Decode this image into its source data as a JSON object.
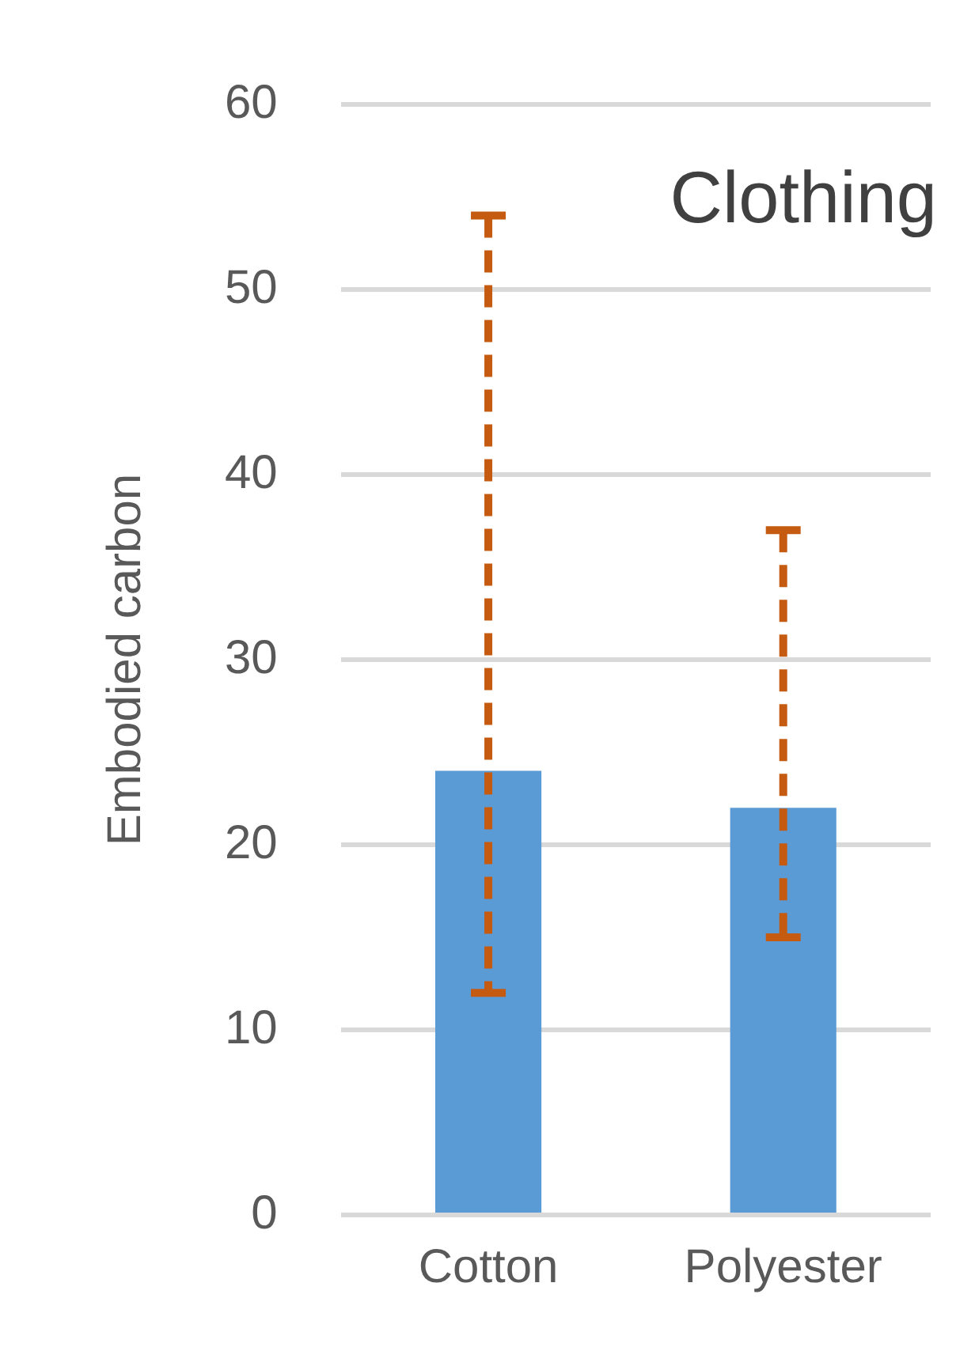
{
  "chart_data": {
    "type": "bar",
    "title": "Clothing",
    "ylabel": "Embodied carbon",
    "categories": [
      "Cotton",
      "Polyester"
    ],
    "values": [
      24,
      22
    ],
    "color": "#5b9bd5",
    "errors": [
      [
        12,
        54
      ],
      [
        15,
        37
      ]
    ],
    "line_style": "dashed",
    "ylim": [
      0,
      60
    ],
    "yticks": [
      0,
      10,
      20,
      30,
      40,
      50,
      60
    ],
    "grid": "y",
    "legend": false
  }
}
